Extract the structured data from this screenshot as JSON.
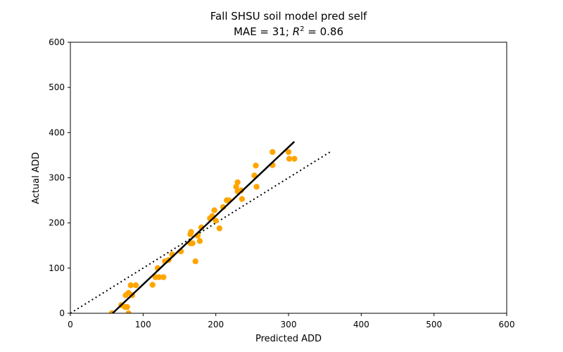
{
  "chart_data": {
    "type": "scatter",
    "title": "Fall SHSU soil model pred self",
    "subtitle_prefix": "MAE = 31; ",
    "subtitle_r": "R",
    "subtitle_exp": "2",
    "subtitle_suffix": " = 0.86",
    "xlabel": "Predicted ADD",
    "ylabel": "Actual ADD",
    "xlim": [
      0,
      600
    ],
    "ylim": [
      0,
      600
    ],
    "xticks": [
      0,
      100,
      200,
      300,
      400,
      500,
      600
    ],
    "yticks": [
      0,
      100,
      200,
      300,
      400,
      500,
      600
    ],
    "grid": false,
    "colors": {
      "points": "#FFA500",
      "fit_line": "#000000",
      "identity_line": "#000000"
    },
    "points": [
      {
        "x": 57,
        "y": 0
      },
      {
        "x": 80,
        "y": 0
      },
      {
        "x": 70,
        "y": 18
      },
      {
        "x": 75,
        "y": 14
      },
      {
        "x": 78,
        "y": 14
      },
      {
        "x": 76,
        "y": 40
      },
      {
        "x": 80,
        "y": 45
      },
      {
        "x": 85,
        "y": 40
      },
      {
        "x": 83,
        "y": 62
      },
      {
        "x": 90,
        "y": 62
      },
      {
        "x": 113,
        "y": 63
      },
      {
        "x": 117,
        "y": 80
      },
      {
        "x": 122,
        "y": 80
      },
      {
        "x": 128,
        "y": 80
      },
      {
        "x": 120,
        "y": 100
      },
      {
        "x": 130,
        "y": 115
      },
      {
        "x": 135,
        "y": 118
      },
      {
        "x": 140,
        "y": 130
      },
      {
        "x": 152,
        "y": 137
      },
      {
        "x": 165,
        "y": 155
      },
      {
        "x": 168,
        "y": 155
      },
      {
        "x": 165,
        "y": 175
      },
      {
        "x": 166,
        "y": 180
      },
      {
        "x": 172,
        "y": 115
      },
      {
        "x": 175,
        "y": 172
      },
      {
        "x": 178,
        "y": 160
      },
      {
        "x": 180,
        "y": 190
      },
      {
        "x": 192,
        "y": 210
      },
      {
        "x": 195,
        "y": 215
      },
      {
        "x": 198,
        "y": 228
      },
      {
        "x": 200,
        "y": 205
      },
      {
        "x": 205,
        "y": 188
      },
      {
        "x": 210,
        "y": 235
      },
      {
        "x": 215,
        "y": 250
      },
      {
        "x": 218,
        "y": 250
      },
      {
        "x": 228,
        "y": 280
      },
      {
        "x": 230,
        "y": 290
      },
      {
        "x": 230,
        "y": 270
      },
      {
        "x": 235,
        "y": 272
      },
      {
        "x": 236,
        "y": 253
      },
      {
        "x": 253,
        "y": 305
      },
      {
        "x": 255,
        "y": 327
      },
      {
        "x": 256,
        "y": 280
      },
      {
        "x": 278,
        "y": 357
      },
      {
        "x": 278,
        "y": 328
      },
      {
        "x": 300,
        "y": 357
      },
      {
        "x": 301,
        "y": 342
      },
      {
        "x": 308,
        "y": 342
      }
    ],
    "fit_line": {
      "x": [
        58,
        308
      ],
      "y": [
        0,
        380
      ]
    },
    "identity_line": {
      "x": [
        0,
        360
      ],
      "y": [
        0,
        360
      ]
    }
  }
}
